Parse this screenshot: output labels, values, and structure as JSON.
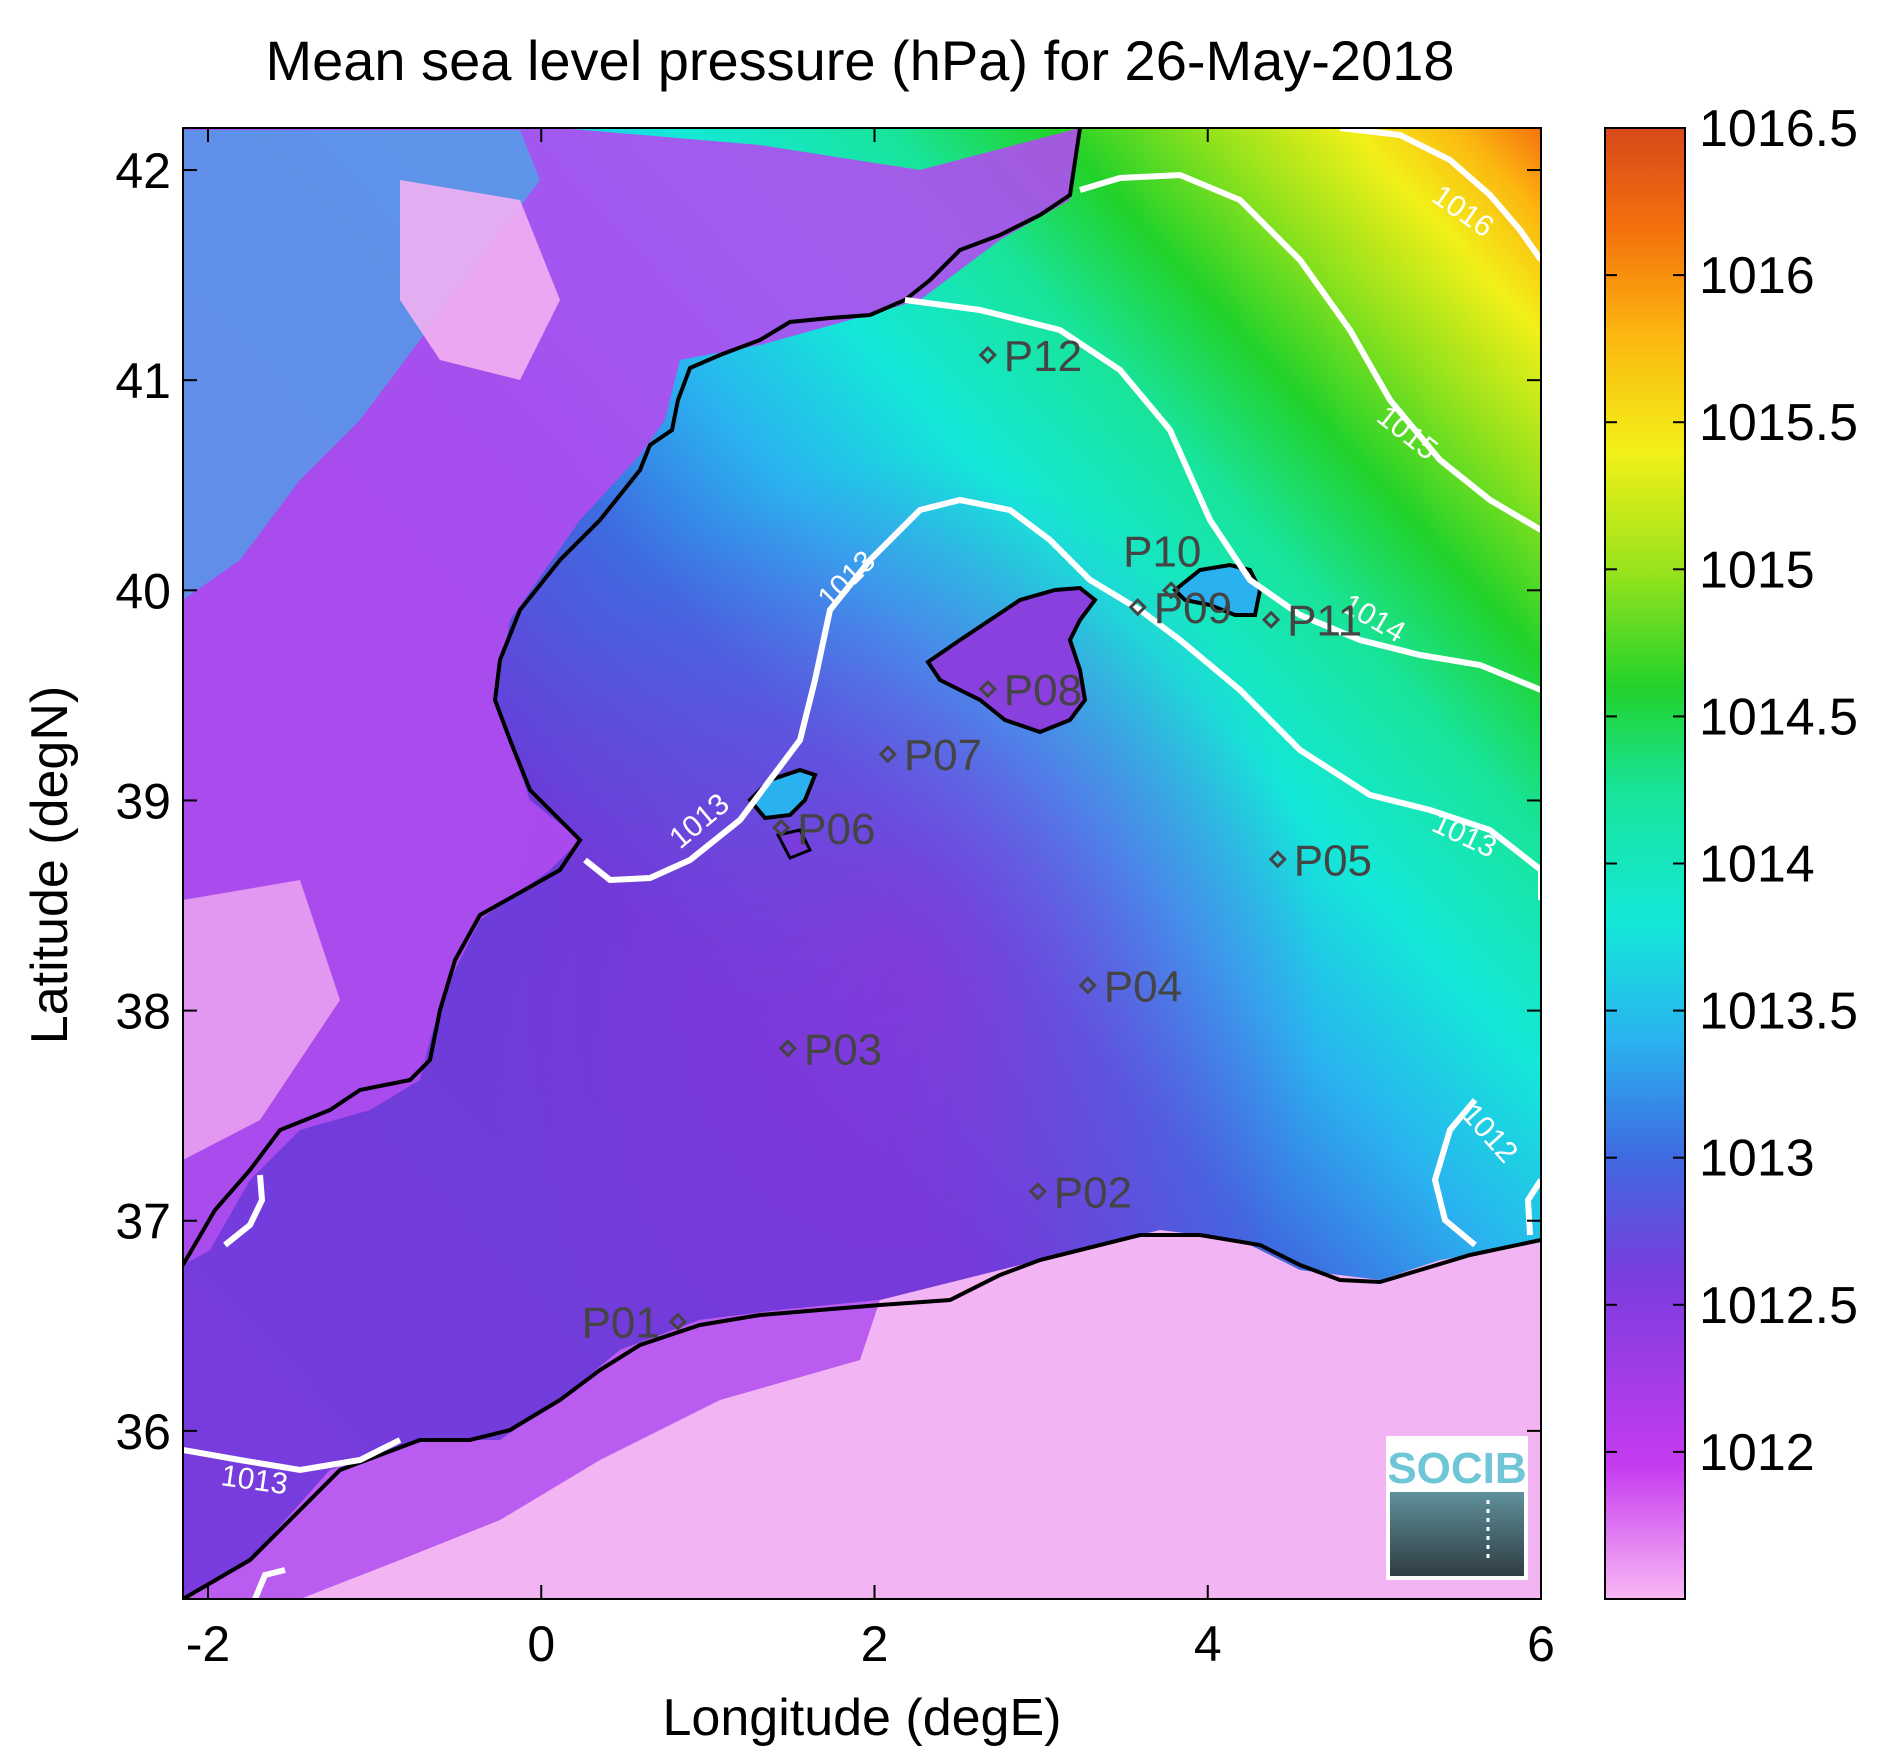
{
  "title": "Mean sea level pressure (hPa) for 26-May-2018",
  "xlabel": "Longitude (degE)",
  "ylabel": "Latitude (degN)",
  "map": {
    "xlim": [
      -2.15,
      6.0
    ],
    "ylim": [
      35.2,
      42.2
    ],
    "xticks": [
      -2,
      0,
      2,
      4,
      6
    ],
    "xtick_labels": [
      "-2",
      "0",
      "2",
      "4",
      "6"
    ],
    "yticks": [
      36,
      37,
      38,
      39,
      40,
      41,
      42
    ],
    "ytick_labels": [
      "36",
      "37",
      "38",
      "39",
      "40",
      "41",
      "42"
    ]
  },
  "colorbar": {
    "range": [
      1011.5,
      1016.5
    ],
    "ticks": [
      1012,
      1012.5,
      1013,
      1013.5,
      1014,
      1014.5,
      1015,
      1015.5,
      1016,
      1016.5
    ],
    "tick_labels": [
      "1012",
      "1012.5",
      "1013",
      "1013.5",
      "1014",
      "1014.5",
      "1015",
      "1015.5",
      "1016",
      "1016.5"
    ],
    "colormap": [
      "#f8b8f4",
      "#c63cf0",
      "#7a3cde",
      "#3f6ae0",
      "#2ab2f0",
      "#14e8d8",
      "#18e49a",
      "#22d22a",
      "#9ae31c",
      "#f2f018",
      "#fcb610",
      "#f4720c",
      "#d8481a"
    ]
  },
  "contour_labels": [
    "1016",
    "1015",
    "1014",
    "1013",
    "1013",
    "1013",
    "1012",
    "1013"
  ],
  "stations": [
    {
      "id": "P01",
      "lon": 0.82,
      "lat": 36.52
    },
    {
      "id": "P02",
      "lon": 2.98,
      "lat": 37.14
    },
    {
      "id": "P03",
      "lon": 1.48,
      "lat": 37.82
    },
    {
      "id": "P04",
      "lon": 3.28,
      "lat": 38.12
    },
    {
      "id": "P05",
      "lon": 4.42,
      "lat": 38.72
    },
    {
      "id": "P06",
      "lon": 1.44,
      "lat": 38.87
    },
    {
      "id": "P07",
      "lon": 2.08,
      "lat": 39.22
    },
    {
      "id": "P08",
      "lon": 2.68,
      "lat": 39.53
    },
    {
      "id": "P09",
      "lon": 3.58,
      "lat": 39.92
    },
    {
      "id": "P10",
      "lon": 3.78,
      "lat": 40.0
    },
    {
      "id": "P11",
      "lon": 4.38,
      "lat": 39.86
    },
    {
      "id": "P12",
      "lon": 2.68,
      "lat": 41.12
    }
  ],
  "logo": {
    "text": "SOCIB"
  }
}
